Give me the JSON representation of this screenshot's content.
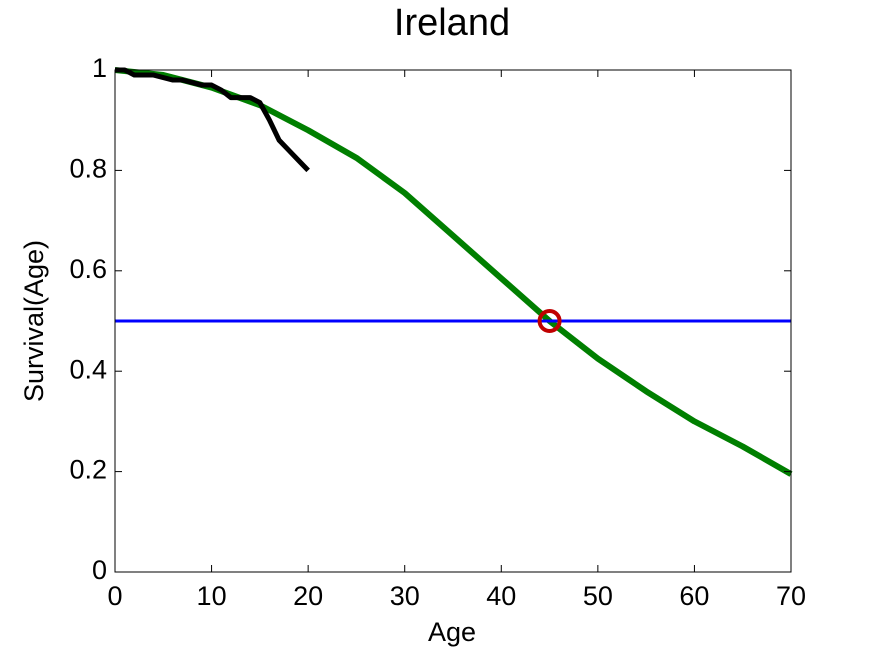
{
  "chart_data": {
    "type": "line",
    "title": "Ireland",
    "xlabel": "Age",
    "ylabel": "Survival(Age)",
    "xlim": [
      0,
      70
    ],
    "ylim": [
      0,
      1
    ],
    "xticks": [
      0,
      10,
      20,
      30,
      40,
      50,
      60,
      70
    ],
    "yticks": [
      0,
      0.2,
      0.4,
      0.6,
      0.8,
      1
    ],
    "grid": false,
    "series": [
      {
        "color": "#007f00",
        "width": 6,
        "x": [
          0,
          5,
          10,
          15,
          20,
          25,
          30,
          35,
          40,
          45,
          50,
          55,
          60,
          65,
          70
        ],
        "values": [
          1.0,
          0.99,
          0.965,
          0.93,
          0.88,
          0.825,
          0.755,
          0.67,
          0.585,
          0.5,
          0.425,
          0.36,
          0.3,
          0.25,
          0.195
        ]
      },
      {
        "color": "#000000",
        "width": 5,
        "x": [
          0,
          1,
          2,
          3,
          4,
          5,
          6,
          7,
          8,
          9,
          10,
          11,
          12,
          13,
          14,
          15,
          16,
          17,
          18,
          19,
          20
        ],
        "values": [
          1,
          1,
          0.99,
          0.99,
          0.99,
          0.985,
          0.98,
          0.98,
          0.975,
          0.97,
          0.97,
          0.96,
          0.945,
          0.945,
          0.945,
          0.935,
          0.9,
          0.86,
          0.84,
          0.82,
          0.8
        ]
      },
      {
        "color": "#0000ff",
        "width": 3,
        "x": [
          0,
          70
        ],
        "values": [
          0.5,
          0.5
        ]
      },
      {
        "color": "#c00000",
        "width": 4,
        "marker": "o",
        "x": [
          45
        ],
        "values": [
          0.5
        ]
      }
    ]
  }
}
